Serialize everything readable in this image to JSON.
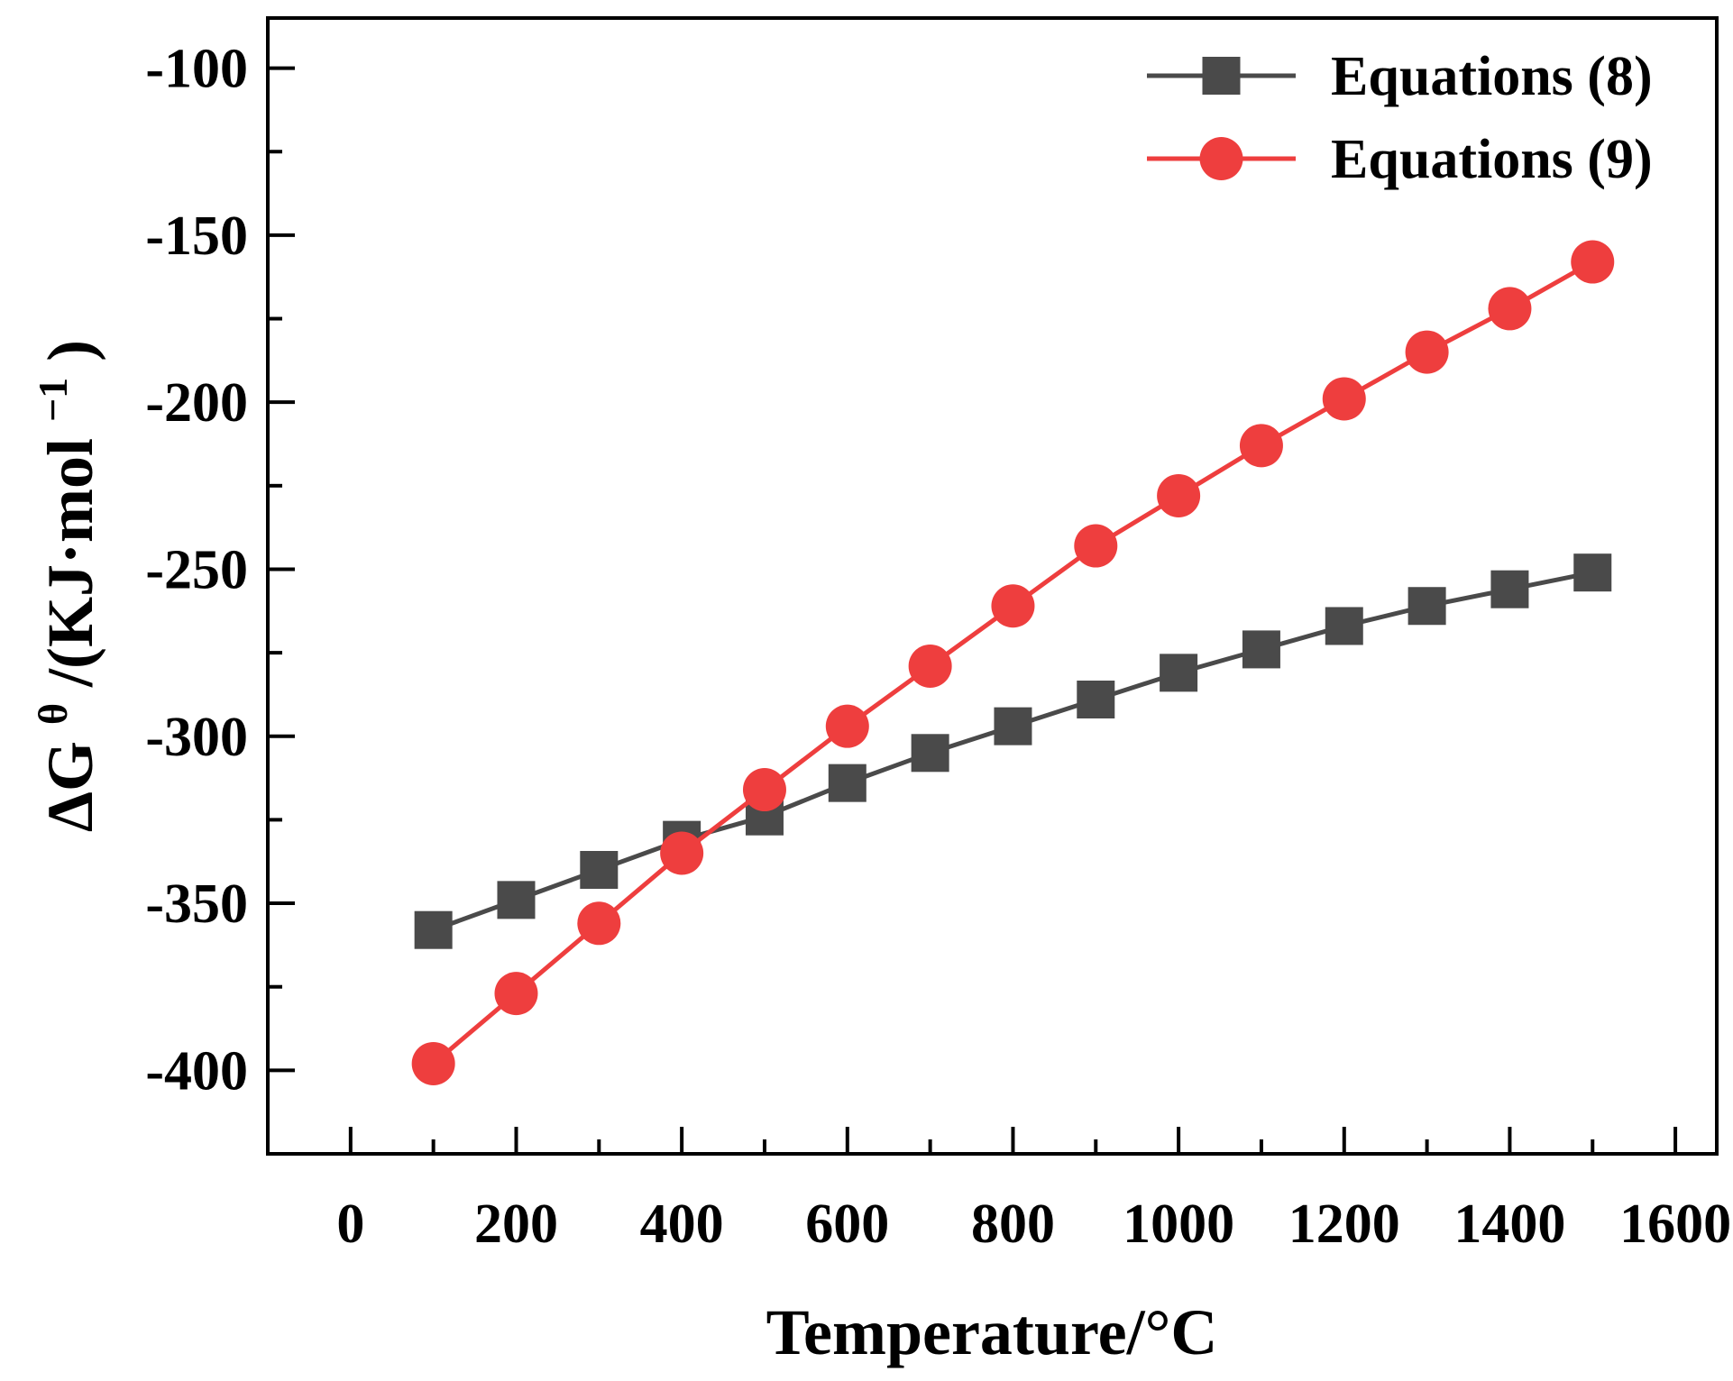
{
  "chart_data": {
    "type": "line",
    "title": "",
    "xlabel": "Temperature/°C",
    "ylabel_parts": {
      "prefix": "ΔG",
      "sup1": "θ",
      "middle": "/(KJ·mol",
      "sup2": "−1",
      "suffix": ")"
    },
    "xlim": [
      -100,
      1650
    ],
    "ylim": [
      -425,
      -85
    ],
    "xticks": [
      0,
      200,
      400,
      600,
      800,
      1000,
      1200,
      1400,
      1600
    ],
    "xtick_labels": [
      "0",
      "200",
      "400",
      "600",
      "800",
      "1000",
      "1200",
      "1400",
      "1600"
    ],
    "yticks": [
      -100,
      -150,
      -200,
      -250,
      -300,
      -350,
      -400
    ],
    "ytick_labels": [
      "-100",
      "-150",
      "-200",
      "-250",
      "-300",
      "-350",
      "-400"
    ],
    "x": [
      100,
      200,
      300,
      400,
      500,
      600,
      700,
      800,
      900,
      1000,
      1100,
      1200,
      1300,
      1400,
      1500
    ],
    "series": [
      {
        "name": "Equations (8)",
        "marker": "square",
        "color": "#4a4a4a",
        "values": [
          -358,
          -349,
          -340,
          -331,
          -324,
          -314,
          -305,
          -297,
          -289,
          -281,
          -274,
          -267,
          -261,
          -256,
          -251
        ]
      },
      {
        "name": "Equations (9)",
        "marker": "circle",
        "color": "#ee3e3e",
        "values": [
          -398,
          -377,
          -356,
          -335,
          -316,
          -297,
          -279,
          -261,
          -243,
          -228,
          -213,
          -199,
          -185,
          -172,
          -158
        ]
      }
    ],
    "legend_position": "top-right",
    "grid": false
  }
}
